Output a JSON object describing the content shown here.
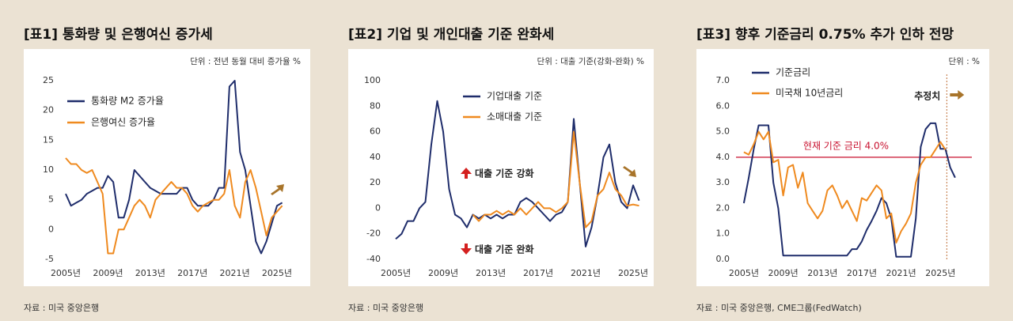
{
  "chart_data": [
    {
      "type": "line",
      "title": "[표1] 통화량 및 은행여신 증가세",
      "unit": "단위 : 전년 동월 대비 증가율 %",
      "source": "자료 : 미국 중앙은행",
      "x": [
        2005,
        2005.5,
        2006,
        2006.5,
        2007,
        2007.5,
        2008,
        2008.5,
        2009,
        2009.5,
        2010,
        2010.5,
        2011,
        2011.5,
        2012,
        2012.5,
        2013,
        2013.5,
        2014,
        2014.5,
        2015,
        2015.5,
        2016,
        2016.5,
        2017,
        2017.5,
        2018,
        2018.5,
        2019,
        2019.5,
        2020,
        2020.5,
        2021,
        2021.5,
        2022,
        2022.5,
        2023,
        2023.5,
        2024,
        2024.5,
        2025,
        2025.5
      ],
      "series": [
        {
          "name": "통화량 M2 증가율",
          "color": "#1f2d6b",
          "values": [
            6,
            4,
            4.5,
            5,
            6,
            6.5,
            7,
            7,
            9,
            8,
            2,
            2,
            5,
            10,
            9,
            8,
            7,
            6.5,
            6,
            6,
            6,
            6,
            7,
            7,
            5,
            4,
            4,
            4,
            5,
            7,
            7,
            24,
            25,
            13,
            10,
            4,
            -2,
            -4,
            -2,
            1,
            4,
            4.5
          ]
        },
        {
          "name": "은행여신 증가율",
          "color": "#ef8a1f",
          "values": [
            12,
            11,
            11,
            10,
            9.5,
            10,
            8,
            6,
            -4,
            -4,
            0,
            0,
            2,
            4,
            5,
            4,
            2,
            5,
            6,
            7,
            8,
            7,
            7,
            6,
            4,
            3,
            4,
            4.5,
            5,
            5,
            6,
            10,
            4,
            2,
            8,
            10,
            7,
            3,
            -1,
            2,
            3,
            4
          ]
        }
      ],
      "xlim": [
        2004.4,
        2026.65
      ],
      "ylim": [
        -5,
        25
      ],
      "yticks": [
        -5,
        0,
        5,
        10,
        15,
        20,
        25
      ],
      "xticks": [
        {
          "value": 2005,
          "label": "2005년"
        },
        {
          "value": 2009,
          "label": "2009년"
        },
        {
          "value": 2013,
          "label": "2013년"
        },
        {
          "value": 2017,
          "label": "2017년"
        },
        {
          "value": 2021,
          "label": "2021년"
        },
        {
          "value": 2025,
          "label": "2025년"
        }
      ],
      "grid": false
    },
    {
      "type": "line",
      "title": "[표2] 기업 및 개인대출 기준 완화세",
      "unit": "단위 : 대출 기준(강화-완화) %",
      "source": "자료 : 미국 중앙은행",
      "x": [
        2005,
        2005.5,
        2006,
        2006.5,
        2007,
        2007.5,
        2008,
        2008.5,
        2009,
        2009.5,
        2010,
        2010.5,
        2011,
        2011.5,
        2012,
        2012.5,
        2013,
        2013.5,
        2014,
        2014.5,
        2015,
        2015.5,
        2016,
        2016.5,
        2017,
        2017.5,
        2018,
        2018.5,
        2019,
        2019.5,
        2020,
        2020.5,
        2021,
        2021.5,
        2022,
        2022.5,
        2023,
        2023.5,
        2024,
        2024.5,
        2025,
        2025.5
      ],
      "series": [
        {
          "name": "기업대출 기준",
          "color": "#1f2d6b",
          "values": [
            -24,
            -20,
            -10,
            -10,
            0,
            5,
            50,
            84,
            60,
            15,
            -5,
            -8,
            -15,
            -5,
            -8,
            -5,
            -8,
            -5,
            -8,
            -5,
            -5,
            5,
            8,
            5,
            0,
            -5,
            -10,
            -5,
            -3,
            5,
            70,
            20,
            -30,
            -15,
            10,
            40,
            50,
            20,
            5,
            0,
            18,
            6
          ]
        },
        {
          "name": "소매대출 기준",
          "color": "#ef8a1f",
          "values": [
            null,
            null,
            null,
            null,
            null,
            null,
            null,
            null,
            null,
            null,
            null,
            null,
            null,
            -5,
            -10,
            -5,
            -5,
            -2,
            -5,
            -2,
            -5,
            0,
            -5,
            0,
            5,
            0,
            0,
            -3,
            0,
            5,
            60,
            20,
            -15,
            -10,
            10,
            15,
            28,
            15,
            10,
            2,
            3,
            2
          ]
        }
      ],
      "annotations": [
        "대출 기준 강화",
        "대출 기준 완화"
      ],
      "xlim": [
        2004.33,
        2025.8
      ],
      "ylim": [
        -40,
        100
      ],
      "yticks": [
        -40,
        -20,
        0,
        20,
        40,
        60,
        80,
        100
      ],
      "xticks": [
        {
          "value": 2005,
          "label": "2005년"
        },
        {
          "value": 2009,
          "label": "2009년"
        },
        {
          "value": 2013,
          "label": "2013년"
        },
        {
          "value": 2017,
          "label": "2017년"
        },
        {
          "value": 2021,
          "label": "2021년"
        },
        {
          "value": 2025,
          "label": "2025년"
        }
      ],
      "grid": false
    },
    {
      "type": "line",
      "title": "[표3] 향후 기준금리 0.75% 추가 인하 전망",
      "unit": "단위 : %",
      "source": "자료 : 미국 중앙은행, CME그룹(FedWatch)",
      "x": [
        2005,
        2005.5,
        2006,
        2006.5,
        2007,
        2007.5,
        2008,
        2008.5,
        2009,
        2009.5,
        2010,
        2010.5,
        2011,
        2011.5,
        2012,
        2012.5,
        2013,
        2013.5,
        2014,
        2014.5,
        2015,
        2015.5,
        2016,
        2016.5,
        2017,
        2017.5,
        2018,
        2018.5,
        2019,
        2019.5,
        2020,
        2020.5,
        2021,
        2021.5,
        2022,
        2022.5,
        2023,
        2023.5,
        2024,
        2024.5,
        2025,
        2025.5,
        2026,
        2026.5
      ],
      "series": [
        {
          "name": "기준금리",
          "color": "#1f2d6b",
          "values": [
            2.2,
            3.2,
            4.3,
            5.25,
            5.25,
            5.25,
            3,
            2,
            0.15,
            0.15,
            0.15,
            0.15,
            0.15,
            0.15,
            0.15,
            0.15,
            0.15,
            0.15,
            0.15,
            0.15,
            0.15,
            0.15,
            0.4,
            0.4,
            0.7,
            1.15,
            1.5,
            1.9,
            2.4,
            2.2,
            1.6,
            0.1,
            0.1,
            0.1,
            0.1,
            1.6,
            4.4,
            5.1,
            5.33,
            5.33,
            4.33,
            4.33,
            3.6,
            3.2
          ]
        },
        {
          "name": "미국채 10년금리",
          "color": "#ef8a1f",
          "values": [
            4.2,
            4.1,
            4.5,
            5,
            4.7,
            5,
            3.8,
            3.9,
            2.5,
            3.6,
            3.7,
            2.8,
            3.4,
            2.2,
            1.9,
            1.6,
            1.9,
            2.7,
            2.9,
            2.5,
            2,
            2.3,
            1.9,
            1.5,
            2.4,
            2.3,
            2.6,
            2.9,
            2.7,
            1.6,
            1.8,
            0.65,
            1.1,
            1.4,
            1.8,
            3,
            3.7,
            4,
            4,
            4.3,
            4.6,
            4.3,
            null,
            null
          ]
        }
      ],
      "ref_line": {
        "value": 4,
        "label": "현재 기준 금리 4.0%",
        "color": "#c8102e"
      },
      "forecast_start": 2025.65,
      "forecast_label": "추정치",
      "xlim": [
        2004.2,
        2028.2
      ],
      "ylim": [
        0,
        7
      ],
      "yticks": [
        {
          "value": 0,
          "label": "0.0"
        },
        {
          "value": 1,
          "label": "1.0"
        },
        {
          "value": 2,
          "label": "2.0"
        },
        {
          "value": 3,
          "label": "3.0"
        },
        {
          "value": 4,
          "label": "4.0"
        },
        {
          "value": 5,
          "label": "5.0"
        },
        {
          "value": 6,
          "label": "6.0"
        },
        {
          "value": 7,
          "label": "7.0"
        }
      ],
      "xticks": [
        {
          "value": 2005,
          "label": "2005년"
        },
        {
          "value": 2009,
          "label": "2009년"
        },
        {
          "value": 2013,
          "label": "2013년"
        },
        {
          "value": 2017,
          "label": "2017년"
        },
        {
          "value": 2021,
          "label": "2021년"
        },
        {
          "value": 2025,
          "label": "2025년"
        }
      ],
      "grid": false
    }
  ]
}
